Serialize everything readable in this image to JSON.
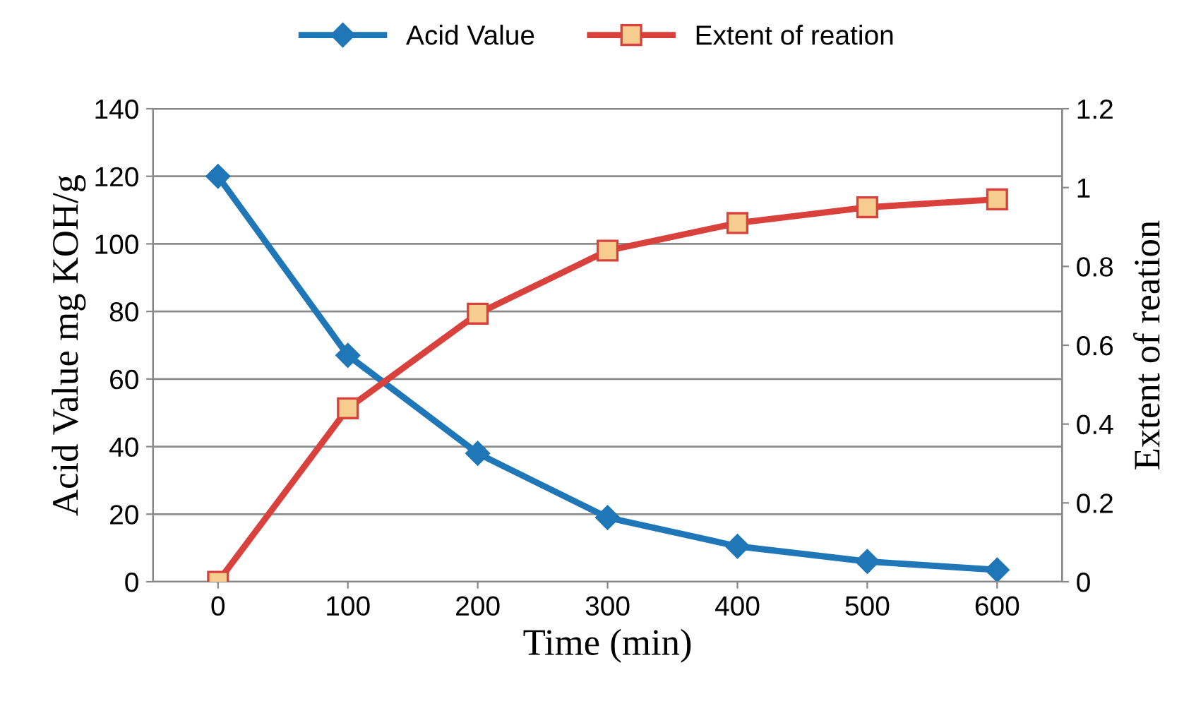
{
  "chart_data": {
    "type": "line",
    "categories": [
      "0",
      "100",
      "200",
      "300",
      "400",
      "500",
      "600"
    ],
    "xlabel": "Time (min)",
    "ylabel": "Acid Value mg KOH/g",
    "y2label": "Extent of reation",
    "ylim": [
      0,
      140
    ],
    "yticks": [
      0,
      20,
      40,
      60,
      80,
      100,
      120,
      140
    ],
    "y2lim": [
      0,
      1.2
    ],
    "y2ticks": [
      0,
      0.2,
      0.4,
      0.6,
      0.8,
      1,
      1.2
    ],
    "grid": "y",
    "legend": "top",
    "series": [
      {
        "name": "Acid Value",
        "color": "#1f77b8",
        "marker": "diamond",
        "values": [
          120,
          67,
          38,
          19,
          10.5,
          6,
          3.5
        ]
      },
      {
        "name": "Extent of reation",
        "color": "#d9423c",
        "marker": "square",
        "axis": "y2",
        "values": [
          0,
          0.44,
          0.68,
          0.84,
          0.91,
          0.95,
          0.97
        ]
      }
    ]
  }
}
